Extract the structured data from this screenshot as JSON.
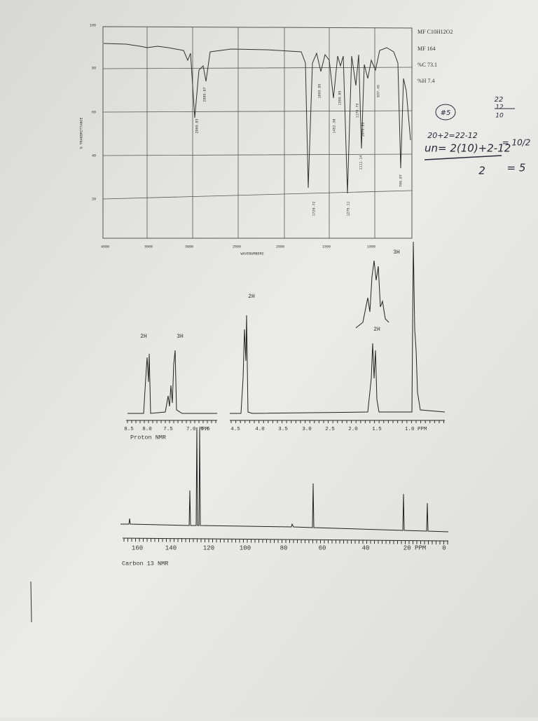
{
  "molecular_info": {
    "formula": "MF C10H12O2",
    "mass": "MF 164",
    "carbon": "%C 73.1",
    "hydrogen": "%H 7.4"
  },
  "ir_spectrum": {
    "y_axis_label": "% TRANSMITTANCE",
    "x_axis_label": "WAVENUMBERS",
    "y_tick_labels": [
      "100",
      "80",
      "60",
      "40",
      "20"
    ],
    "x_tick_labels": [
      "4000",
      "3500",
      "3000",
      "2500",
      "2000",
      "1500",
      "1000"
    ],
    "peak_labels": [
      "2960.83",
      "2880.97",
      "1720.72",
      "1603.85",
      "1452.38",
      "1390.85",
      "1275.11",
      "1178.73",
      "1070.83",
      "1111.14",
      "937.45",
      "709.87"
    ]
  },
  "handwritten_notes": [
    "#5",
    "22",
    "12",
    "10",
    "20+2=22-12",
    "un= 2(10)+2-12",
    "2",
    "= 5",
    "= 10/2"
  ],
  "proton_nmr": {
    "label": "Proton NMR",
    "integrations": [
      "2H",
      "3H",
      "2H",
      "2H",
      "3H"
    ],
    "tick_labels": [
      "8.5",
      "8.0",
      "7.5",
      "7.0 PPM",
      "6.5",
      "4.5",
      "4.0",
      "3.5",
      "3.0",
      "2.5",
      "2.0",
      "1.5",
      "1.0 PPM"
    ]
  },
  "carbon_nmr": {
    "label": "Carbon 13 NMR",
    "tick_labels": [
      "160",
      "140",
      "120",
      "100",
      "80",
      "60",
      "40",
      "20 PPM",
      "0"
    ]
  }
}
